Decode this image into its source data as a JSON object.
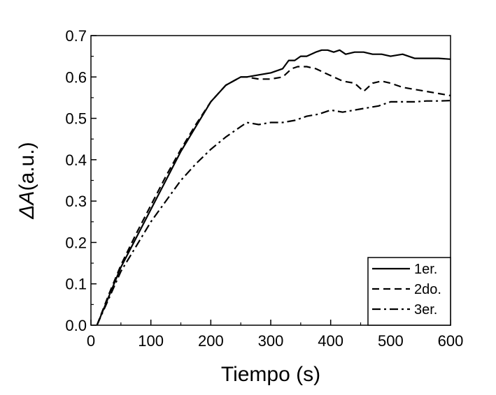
{
  "chart_data": {
    "type": "line",
    "xlabel": "Tiempo (s)",
    "ylabel_prefix": "ΔA",
    "ylabel_suffix": "(a.u.)",
    "xlim": [
      0,
      600
    ],
    "ylim": [
      0.0,
      0.7
    ],
    "xticks": [
      0,
      100,
      200,
      300,
      400,
      500,
      600
    ],
    "xtick_labels": [
      "0",
      "100",
      "200",
      "300",
      "400",
      "500",
      "600"
    ],
    "yticks": [
      0.0,
      0.1,
      0.2,
      0.3,
      0.4,
      0.5,
      0.6,
      0.7
    ],
    "ytick_labels": [
      "0.0",
      "0.1",
      "0.2",
      "0.3",
      "0.4",
      "0.5",
      "0.6",
      "0.7"
    ],
    "grid": false,
    "legend_position": "bottom-right",
    "series": [
      {
        "name": "1er.",
        "style": "solid",
        "x": [
          10,
          30,
          50,
          75,
          100,
          125,
          150,
          175,
          200,
          225,
          250,
          260,
          280,
          300,
          320,
          330,
          340,
          350,
          360,
          375,
          385,
          395,
          405,
          415,
          425,
          440,
          455,
          470,
          485,
          500,
          520,
          540,
          560,
          580,
          600
        ],
        "y": [
          0.0,
          0.07,
          0.14,
          0.21,
          0.28,
          0.35,
          0.42,
          0.48,
          0.54,
          0.58,
          0.6,
          0.6,
          0.605,
          0.61,
          0.62,
          0.64,
          0.64,
          0.65,
          0.65,
          0.66,
          0.665,
          0.665,
          0.66,
          0.665,
          0.655,
          0.66,
          0.66,
          0.655,
          0.655,
          0.65,
          0.655,
          0.645,
          0.645,
          0.645,
          0.643
        ]
      },
      {
        "name": "2do.",
        "style": "dashed",
        "x": [
          10,
          30,
          50,
          75,
          100,
          125,
          150,
          175,
          200,
          225,
          250,
          260,
          280,
          300,
          320,
          335,
          345,
          360,
          375,
          390,
          405,
          420,
          440,
          455,
          470,
          485,
          500,
          520,
          540,
          560,
          580,
          600
        ],
        "y": [
          0.0,
          0.075,
          0.145,
          0.22,
          0.29,
          0.36,
          0.425,
          0.485,
          0.54,
          0.58,
          0.6,
          0.6,
          0.595,
          0.595,
          0.6,
          0.62,
          0.625,
          0.625,
          0.62,
          0.61,
          0.6,
          0.59,
          0.585,
          0.565,
          0.585,
          0.59,
          0.585,
          0.575,
          0.57,
          0.565,
          0.56,
          0.555
        ]
      },
      {
        "name": "3er.",
        "style": "dashdot",
        "x": [
          10,
          30,
          50,
          75,
          100,
          125,
          150,
          175,
          200,
          225,
          250,
          260,
          280,
          300,
          320,
          340,
          360,
          380,
          400,
          420,
          440,
          460,
          480,
          500,
          520,
          540,
          560,
          580,
          600
        ],
        "y": [
          0.0,
          0.065,
          0.13,
          0.19,
          0.25,
          0.3,
          0.35,
          0.39,
          0.425,
          0.455,
          0.48,
          0.49,
          0.485,
          0.49,
          0.49,
          0.495,
          0.505,
          0.51,
          0.52,
          0.515,
          0.52,
          0.525,
          0.53,
          0.54,
          0.54,
          0.54,
          0.542,
          0.542,
          0.543
        ]
      }
    ]
  }
}
